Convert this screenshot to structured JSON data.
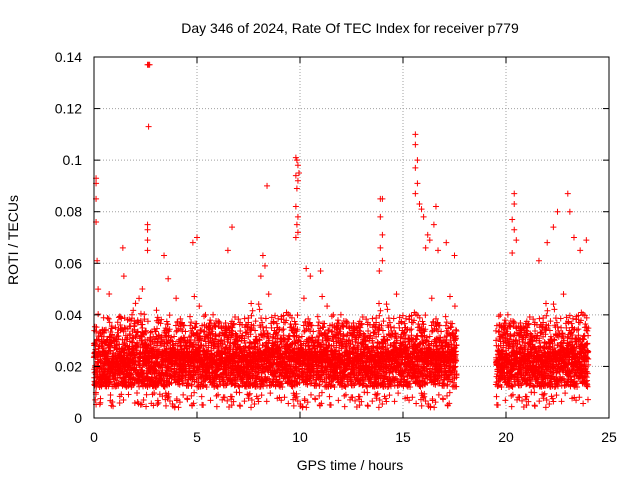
{
  "chart_data": {
    "type": "scatter",
    "title": "Day 346 of 2024, Rate Of TEC Index for receiver p779",
    "xlabel": "GPS time / hours",
    "ylabel": "ROTI / TECUs",
    "xlim": [
      0,
      25
    ],
    "ylim": [
      0,
      0.14
    ],
    "xticks": [
      0,
      5,
      10,
      15,
      20,
      25
    ],
    "xtick_labels": [
      "0",
      "5",
      "10",
      "15",
      "20",
      "25"
    ],
    "yticks": [
      0,
      0.02,
      0.04,
      0.06,
      0.08,
      0.1,
      0.12,
      0.14
    ],
    "ytick_labels": [
      "0",
      "0.02",
      "0.04",
      "0.06",
      "0.08",
      "0.1",
      "0.12",
      "0.14"
    ],
    "grid": true,
    "marker": "+",
    "color": "#ff0000",
    "data_gap_hours": [
      17.6,
      19.5
    ],
    "series": [
      {
        "name": "ROTI",
        "points": [
          [
            0.1,
            0.093
          ],
          [
            0.1,
            0.091
          ],
          [
            0.1,
            0.085
          ],
          [
            0.1,
            0.076
          ],
          [
            0.15,
            0.061
          ],
          [
            0.2,
            0.05
          ],
          [
            2.6,
            0.137
          ],
          [
            2.65,
            0.137
          ],
          [
            2.7,
            0.137
          ],
          [
            2.65,
            0.113
          ],
          [
            2.6,
            0.075
          ],
          [
            2.6,
            0.073
          ],
          [
            2.6,
            0.069
          ],
          [
            2.6,
            0.065
          ],
          [
            1.4,
            0.066
          ],
          [
            1.45,
            0.055
          ],
          [
            3.4,
            0.063
          ],
          [
            3.6,
            0.054
          ],
          [
            4.8,
            0.068
          ],
          [
            5.0,
            0.07
          ],
          [
            6.7,
            0.074
          ],
          [
            6.5,
            0.065
          ],
          [
            8.4,
            0.09
          ],
          [
            8.2,
            0.063
          ],
          [
            8.3,
            0.059
          ],
          [
            8.1,
            0.055
          ],
          [
            9.8,
            0.101
          ],
          [
            9.85,
            0.1
          ],
          [
            9.9,
            0.098
          ],
          [
            9.95,
            0.095
          ],
          [
            9.8,
            0.094
          ],
          [
            9.9,
            0.092
          ],
          [
            9.85,
            0.089
          ],
          [
            9.8,
            0.082
          ],
          [
            9.9,
            0.078
          ],
          [
            9.85,
            0.075
          ],
          [
            9.9,
            0.072
          ],
          [
            9.8,
            0.07
          ],
          [
            10.3,
            0.058
          ],
          [
            10.5,
            0.055
          ],
          [
            11.0,
            0.057
          ],
          [
            13.9,
            0.085
          ],
          [
            14.0,
            0.085
          ],
          [
            13.9,
            0.078
          ],
          [
            14.0,
            0.071
          ],
          [
            13.9,
            0.066
          ],
          [
            14.0,
            0.061
          ],
          [
            13.85,
            0.057
          ],
          [
            15.6,
            0.11
          ],
          [
            15.6,
            0.106
          ],
          [
            15.7,
            0.1
          ],
          [
            15.6,
            0.097
          ],
          [
            15.7,
            0.091
          ],
          [
            15.6,
            0.087
          ],
          [
            15.8,
            0.083
          ],
          [
            15.9,
            0.081
          ],
          [
            16.0,
            0.078
          ],
          [
            16.2,
            0.071
          ],
          [
            16.3,
            0.069
          ],
          [
            16.1,
            0.066
          ],
          [
            16.6,
            0.082
          ],
          [
            16.5,
            0.075
          ],
          [
            16.7,
            0.065
          ],
          [
            17.1,
            0.068
          ],
          [
            17.5,
            0.063
          ],
          [
            20.4,
            0.087
          ],
          [
            20.4,
            0.083
          ],
          [
            20.3,
            0.077
          ],
          [
            20.4,
            0.073
          ],
          [
            20.5,
            0.069
          ],
          [
            20.3,
            0.064
          ],
          [
            21.6,
            0.061
          ],
          [
            22.0,
            0.068
          ],
          [
            22.3,
            0.074
          ],
          [
            22.5,
            0.08
          ],
          [
            23.0,
            0.087
          ],
          [
            23.1,
            0.08
          ],
          [
            23.3,
            0.07
          ],
          [
            23.6,
            0.065
          ],
          [
            23.9,
            0.069
          ],
          [
            19.7,
            0.036
          ]
        ]
      }
    ]
  }
}
